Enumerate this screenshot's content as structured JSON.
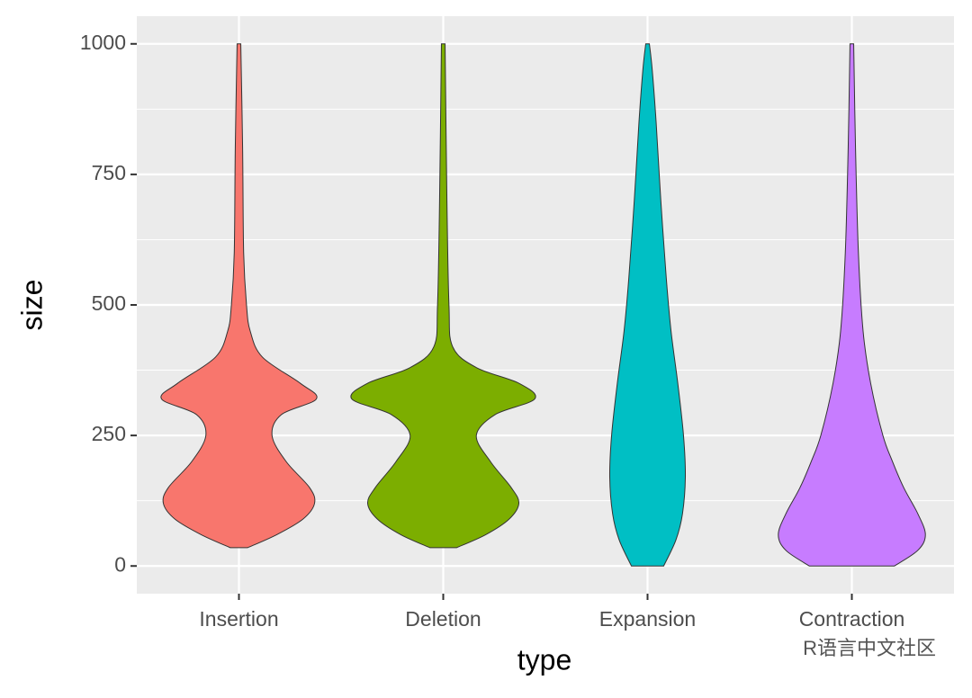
{
  "chart_data": {
    "type": "violin",
    "x_label": "type",
    "y_label": "size",
    "categories": [
      "Insertion",
      "Deletion",
      "Expansion",
      "Contraction"
    ],
    "series": [
      {
        "name": "Insertion",
        "color": "#f8766d",
        "y": [
          35,
          60,
          90,
          120,
          150,
          200,
          250,
          290,
          320,
          350,
          400,
          450,
          500,
          600,
          800,
          1000
        ],
        "half_widths": [
          0.042,
          0.185,
          0.314,
          0.37,
          0.346,
          0.231,
          0.162,
          0.208,
          0.379,
          0.3,
          0.115,
          0.055,
          0.037,
          0.023,
          0.018,
          0.009
        ]
      },
      {
        "name": "Deletion",
        "color": "#7cae00",
        "y": [
          35,
          60,
          90,
          120,
          150,
          200,
          250,
          290,
          320,
          350,
          380,
          420,
          500,
          700,
          1000
        ],
        "half_widths": [
          0.065,
          0.208,
          0.323,
          0.37,
          0.333,
          0.231,
          0.162,
          0.254,
          0.448,
          0.37,
          0.162,
          0.046,
          0.028,
          0.018,
          0.009
        ]
      },
      {
        "name": "Expansion",
        "color": "#00bfc4",
        "y": [
          0,
          50,
          100,
          170,
          250,
          350,
          450,
          550,
          700,
          850,
          950,
          1000
        ],
        "half_widths": [
          0.079,
          0.139,
          0.171,
          0.185,
          0.176,
          0.148,
          0.115,
          0.092,
          0.065,
          0.042,
          0.023,
          0.009
        ]
      },
      {
        "name": "Contraction",
        "color": "#c77cff",
        "y": [
          0,
          30,
          60,
          100,
          150,
          200,
          250,
          350,
          450,
          600,
          800,
          1000
        ],
        "half_widths": [
          0.208,
          0.323,
          0.36,
          0.323,
          0.254,
          0.199,
          0.152,
          0.092,
          0.055,
          0.032,
          0.018,
          0.009
        ]
      }
    ],
    "ylim": [
      -53,
      1053
    ],
    "yticks": [
      0,
      250,
      500,
      750,
      1000
    ],
    "y_minor_grid": [
      125,
      375,
      625,
      875
    ],
    "grid": true,
    "watermark": "R语言中文社区"
  }
}
